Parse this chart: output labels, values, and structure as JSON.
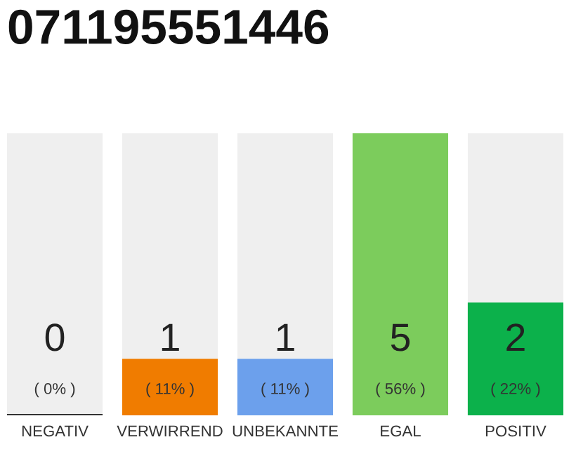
{
  "chart_data": {
    "type": "bar",
    "title": "071195551446",
    "stacked": true,
    "categories": [
      "NEGATIV",
      "VERWIRREND",
      "UNBEKANNTE",
      "EGAL",
      "POSITIV"
    ],
    "series": [
      {
        "colors": [
          "#333333",
          "#f07c00",
          "#6ca0ec",
          "#7ccc5c",
          "#0cb14b"
        ],
        "values": [
          0,
          1,
          1,
          5,
          2
        ],
        "value_labels": [
          "0",
          "1",
          "1",
          "5",
          "2"
        ]
      },
      {
        "color": "#efefef",
        "values": [
          5,
          4,
          4,
          0,
          3
        ]
      }
    ],
    "ylim": [
      0,
      5
    ],
    "annotations": [
      "( 0% )",
      "( 11% )",
      "( 11% )",
      "( 56% )",
      "( 22% )"
    ]
  }
}
